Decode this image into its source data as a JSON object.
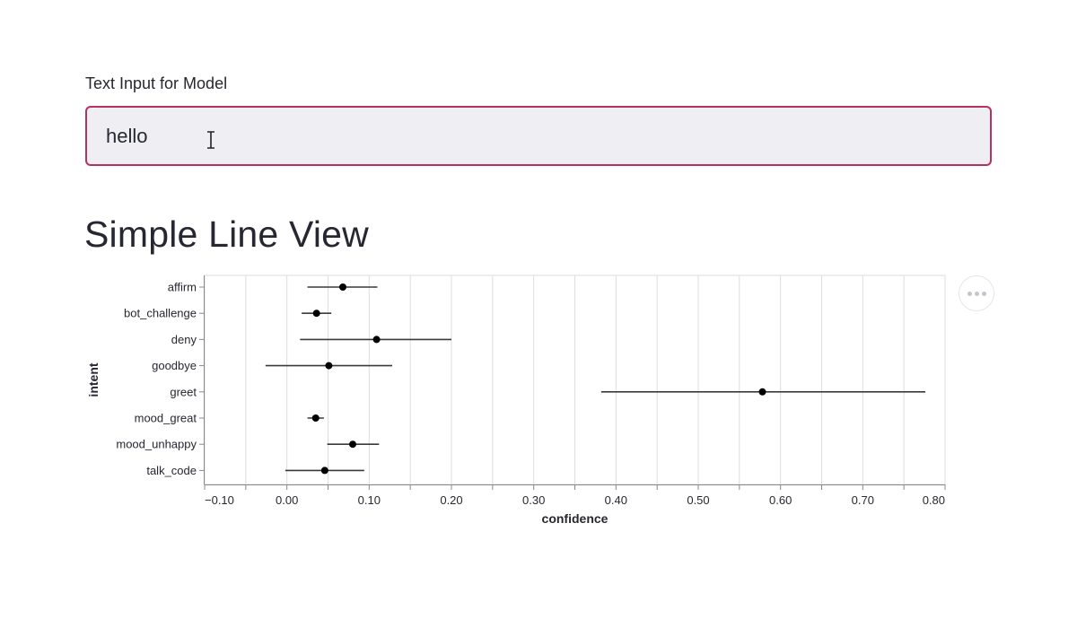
{
  "input": {
    "label": "Text Input for Model",
    "value": "hello"
  },
  "page_title": "Simple Line View",
  "menu": {
    "icon": "more-horizontal-icon"
  },
  "colors": {
    "input_border": "#b4325e",
    "input_background": "#eeeef3",
    "marks": "#000000"
  },
  "chart_data": {
    "type": "scatter",
    "title": "",
    "xlabel": "confidence",
    "ylabel": "intent",
    "xlim": [
      -0.1,
      0.8
    ],
    "x_ticks": [
      -0.1,
      0.0,
      0.1,
      0.2,
      0.3,
      0.4,
      0.5,
      0.6,
      0.7,
      0.8
    ],
    "x_tick_labels": [
      "−0.10",
      "0.00",
      "0.10",
      "0.20",
      "0.30",
      "0.40",
      "0.50",
      "0.60",
      "0.70",
      "0.80"
    ],
    "grid": true,
    "categories": [
      "affirm",
      "bot_challenge",
      "deny",
      "goodbye",
      "greet",
      "mood_great",
      "mood_unhappy",
      "talk_code"
    ],
    "values": [
      0.068,
      0.036,
      0.109,
      0.051,
      0.578,
      0.035,
      0.08,
      0.046
    ],
    "lower": [
      0.025,
      0.018,
      0.016,
      -0.026,
      0.382,
      0.025,
      0.049,
      -0.002
    ],
    "upper": [
      0.11,
      0.054,
      0.2,
      0.128,
      0.776,
      0.045,
      0.112,
      0.094
    ]
  }
}
